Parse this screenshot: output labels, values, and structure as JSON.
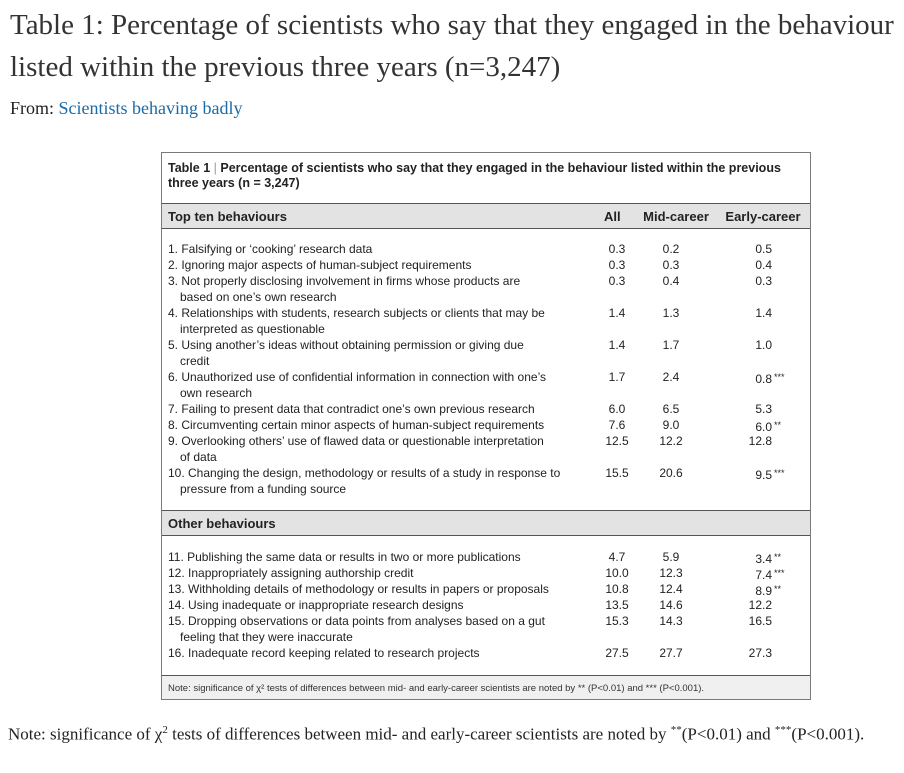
{
  "page": {
    "title": "Table 1: Percentage of scientists who say that they engaged in the behaviour listed within the previous three years (n=3,247)",
    "from_prefix": "From:",
    "from_link": "Scientists behaving badly"
  },
  "figure": {
    "title_prefix": "Table 1",
    "title_sep": "|",
    "title_text": "Percentage of scientists who say that they engaged in the behaviour listed within the previous three years (n = 3,247)",
    "columns": {
      "all": "All",
      "mid": "Mid-career",
      "early": "Early-career"
    },
    "sections": [
      {
        "heading": "Top ten behaviours",
        "rows": [
          {
            "lines": [
              "1. Falsifying or ‘cooking’ research data"
            ],
            "all": "0.3",
            "mid": "0.2",
            "early": "0.5",
            "sig": ""
          },
          {
            "lines": [
              "2. Ignoring major aspects of human-subject requirements"
            ],
            "all": "0.3",
            "mid": "0.3",
            "early": "0.4",
            "sig": ""
          },
          {
            "lines": [
              "3. Not properly disclosing involvement in firms whose products are",
              "based on one’s own research"
            ],
            "all": "0.3",
            "mid": "0.4",
            "early": "0.3",
            "sig": ""
          },
          {
            "lines": [
              "4. Relationships with students, research subjects or clients that may be",
              "interpreted as questionable"
            ],
            "all": "1.4",
            "mid": "1.3",
            "early": "1.4",
            "sig": ""
          },
          {
            "lines": [
              "5. Using another’s ideas without obtaining permission or giving due",
              "credit"
            ],
            "all": "1.4",
            "mid": "1.7",
            "early": "1.0",
            "sig": ""
          },
          {
            "lines": [
              "6. Unauthorized use of confidential information in connection with one’s",
              "own research"
            ],
            "all": "1.7",
            "mid": "2.4",
            "early": "0.8",
            "sig": "***"
          },
          {
            "lines": [
              "7. Failing to present data that contradict one’s own previous research"
            ],
            "all": "6.0",
            "mid": "6.5",
            "early": "5.3",
            "sig": ""
          },
          {
            "lines": [
              "8. Circumventing certain minor aspects of human-subject requirements"
            ],
            "all": "7.6",
            "mid": "9.0",
            "early": "6.0",
            "sig": "**"
          },
          {
            "lines": [
              "9. Overlooking others’ use of flawed data or questionable interpretation",
              "of data"
            ],
            "all": "12.5",
            "mid": "12.2",
            "early": "12.8",
            "sig": ""
          },
          {
            "lines": [
              "10. Changing the design, methodology or results of a study in response to",
              "pressure from a funding source"
            ],
            "all": "15.5",
            "mid": "20.6",
            "early": "9.5",
            "sig": "***"
          }
        ]
      },
      {
        "heading": "Other behaviours",
        "rows": [
          {
            "lines": [
              "11. Publishing the same data or results in two or more publications"
            ],
            "all": "4.7",
            "mid": "5.9",
            "early": "3.4",
            "sig": "**"
          },
          {
            "lines": [
              "12. Inappropriately assigning authorship credit"
            ],
            "all": "10.0",
            "mid": "12.3",
            "early": "7.4",
            "sig": "***"
          },
          {
            "lines": [
              "13. Withholding details of methodology or results in papers or proposals"
            ],
            "all": "10.8",
            "mid": "12.4",
            "early": "8.9",
            "sig": "**"
          },
          {
            "lines": [
              "14. Using inadequate or inappropriate research designs"
            ],
            "all": "13.5",
            "mid": "14.6",
            "early": "12.2",
            "sig": ""
          },
          {
            "lines": [
              "15. Dropping observations or data points from analyses based on a gut",
              "feeling that they were inaccurate"
            ],
            "all": "15.3",
            "mid": "14.3",
            "early": "16.5",
            "sig": ""
          },
          {
            "lines": [
              "16. Inadequate record keeping related to research projects"
            ],
            "all": "27.5",
            "mid": "27.7",
            "early": "27.3",
            "sig": ""
          }
        ]
      }
    ],
    "note": "Note: significance of χ² tests of differences between mid- and early-career scientists are noted by ** (P<0.01) and *** (P<0.001)."
  },
  "footnote": {
    "text_a": "Note: significance of χ",
    "text_sup": "2",
    "text_b": " tests of differences between mid- and early-career scientists are noted by ",
    "sig2": "**",
    "text_c": "(P<0.01) and ",
    "sig3": "***",
    "text_d": "(P<0.001)."
  }
}
